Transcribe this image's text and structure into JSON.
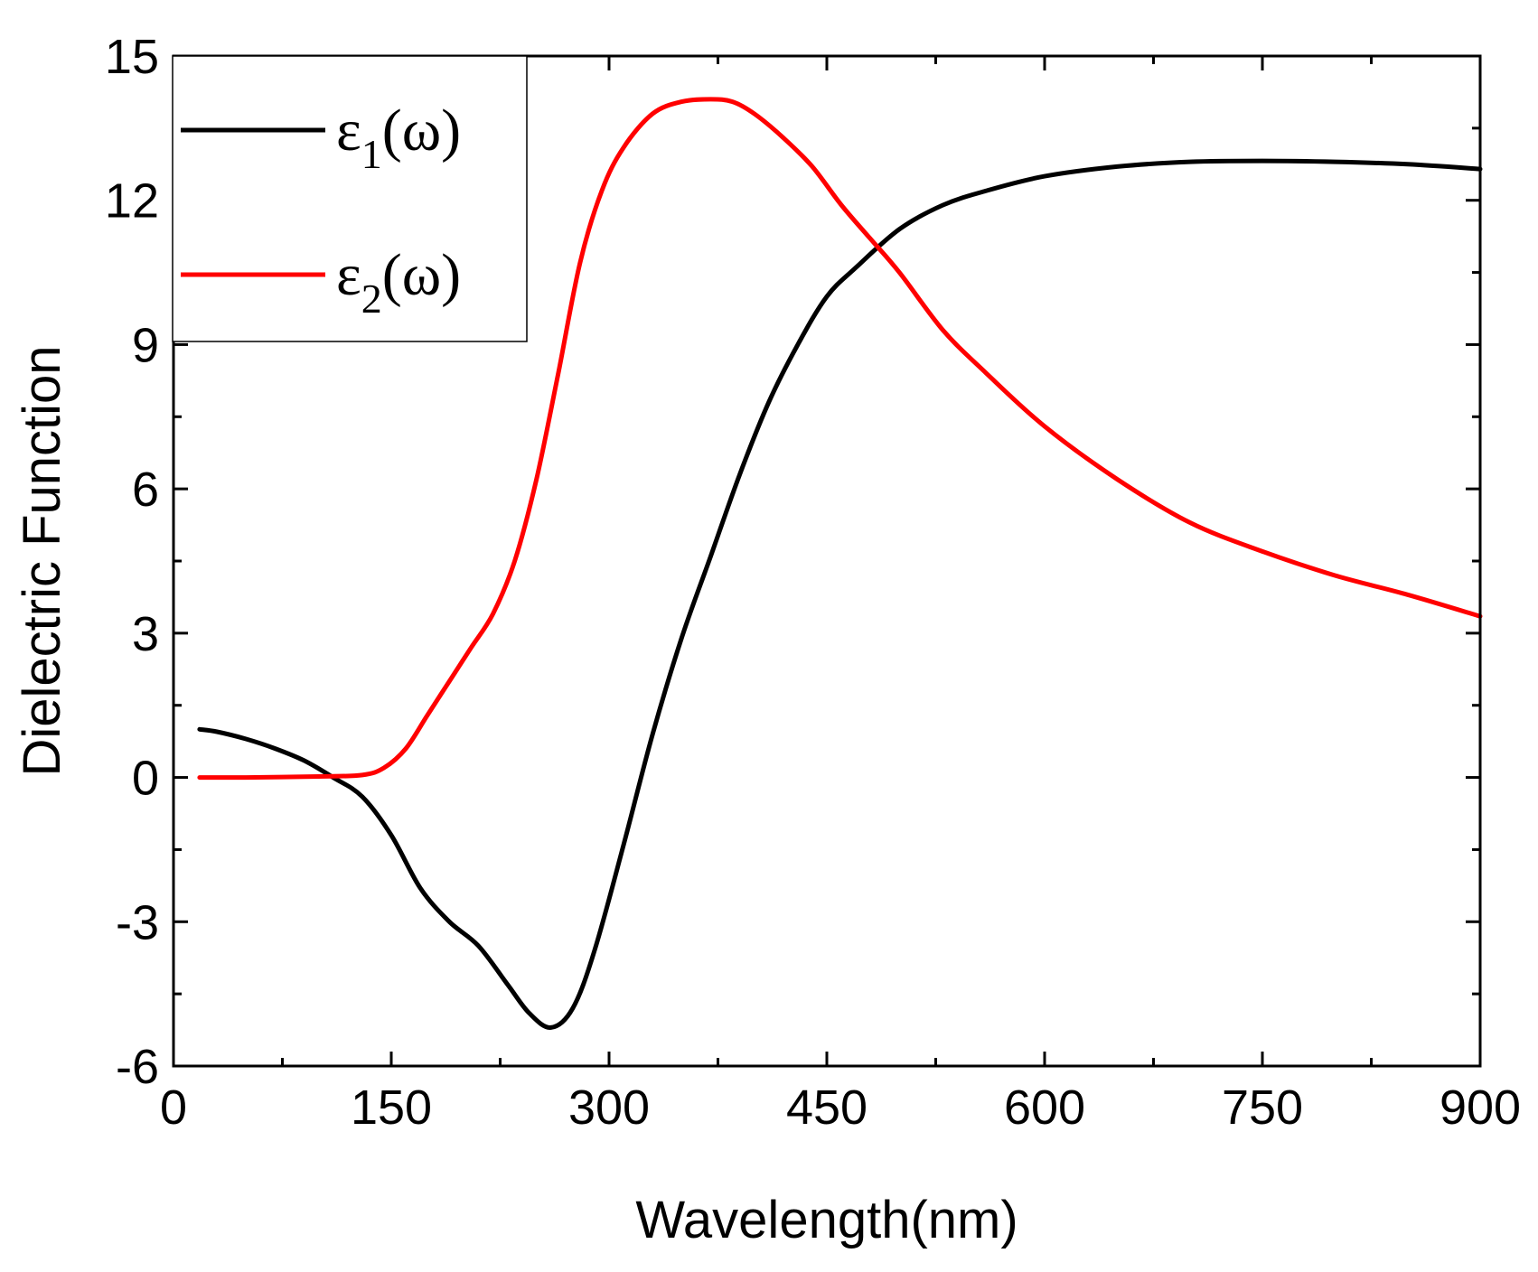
{
  "chart_data": {
    "type": "line",
    "title": "",
    "xlabel": "Wavelength(nm)",
    "ylabel": "Dielectric Function",
    "xlim": [
      0,
      900
    ],
    "ylim": [
      -6,
      15
    ],
    "x_ticks": [
      0,
      150,
      300,
      450,
      600,
      750,
      900
    ],
    "y_ticks": [
      -6,
      -3,
      0,
      3,
      6,
      9,
      12,
      15
    ],
    "x_tick_labels": [
      "0",
      "150",
      "300",
      "450",
      "600",
      "750",
      "900"
    ],
    "y_tick_labels": [
      "-6",
      "-3",
      "0",
      "3",
      "6",
      "9",
      "12",
      "15"
    ],
    "grid": false,
    "legend_position": "top-left",
    "series": [
      {
        "name": "ε1(ω)",
        "symbol": "ε",
        "subscript": "1",
        "suffix": "(ω)",
        "color": "#000000",
        "x": [
          18,
          30,
          50,
          70,
          90,
          110,
          130,
          150,
          170,
          190,
          210,
          230,
          245,
          260,
          275,
          290,
          310,
          330,
          350,
          370,
          390,
          410,
          430,
          450,
          470,
          500,
          530,
          560,
          600,
          650,
          700,
          750,
          800,
          850,
          900
        ],
        "y": [
          1.0,
          0.95,
          0.8,
          0.6,
          0.35,
          0.0,
          -0.4,
          -1.2,
          -2.3,
          -3.0,
          -3.5,
          -4.3,
          -4.9,
          -5.2,
          -4.8,
          -3.6,
          -1.4,
          0.9,
          2.9,
          4.6,
          6.3,
          7.8,
          9.0,
          10.0,
          10.6,
          11.4,
          11.9,
          12.2,
          12.5,
          12.7,
          12.8,
          12.82,
          12.8,
          12.75,
          12.65
        ]
      },
      {
        "name": "ε2(ω)",
        "symbol": "ε",
        "subscript": "2",
        "suffix": "(ω)",
        "color": "#ff0000",
        "x": [
          18,
          50,
          100,
          130,
          145,
          160,
          175,
          190,
          205,
          220,
          235,
          250,
          265,
          280,
          295,
          310,
          330,
          350,
          370,
          385,
          400,
          420,
          440,
          460,
          480,
          500,
          530,
          560,
          600,
          650,
          700,
          750,
          800,
          850,
          900
        ],
        "y": [
          0.0,
          0.0,
          0.02,
          0.05,
          0.2,
          0.6,
          1.3,
          2.0,
          2.7,
          3.4,
          4.5,
          6.2,
          8.4,
          10.7,
          12.2,
          13.1,
          13.8,
          14.05,
          14.1,
          14.05,
          13.8,
          13.3,
          12.7,
          11.9,
          11.2,
          10.5,
          9.3,
          8.4,
          7.3,
          6.2,
          5.3,
          4.7,
          4.2,
          3.8,
          3.35
        ]
      }
    ]
  }
}
